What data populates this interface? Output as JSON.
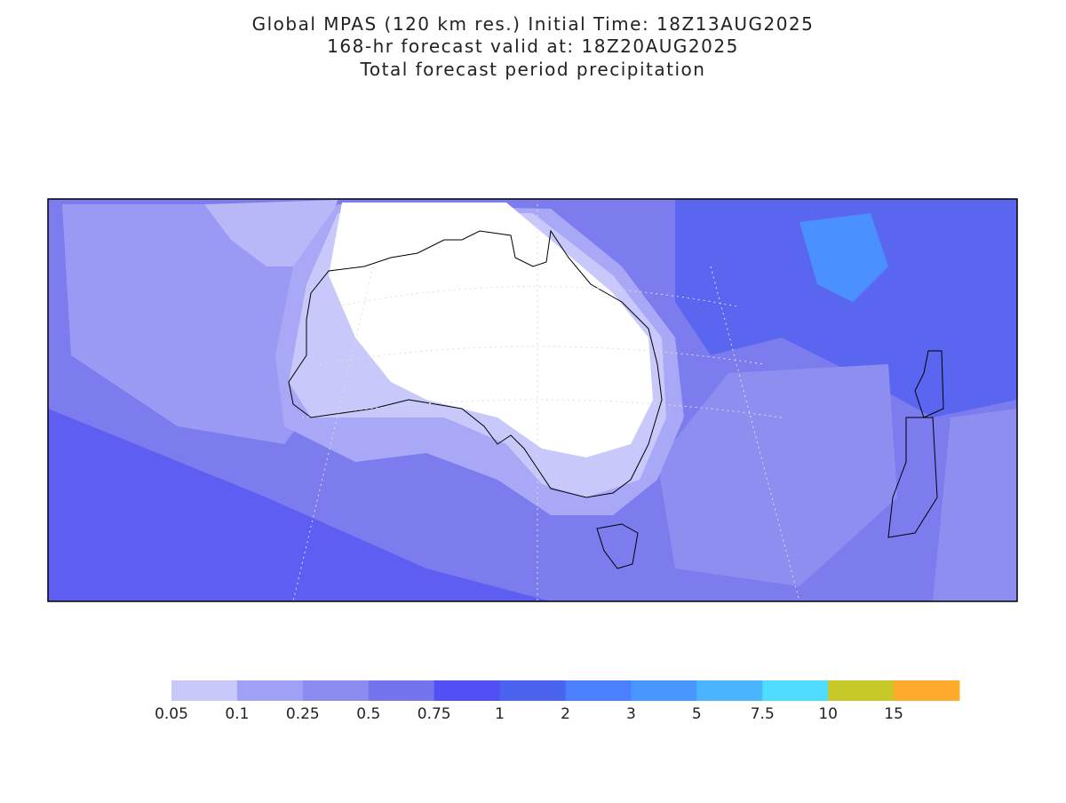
{
  "header": {
    "lines": [
      "Global MPAS (120 km res.) Initial Time: 18Z13AUG2025",
      "168-hr forecast valid at: 18Z20AUG2025",
      "Total forecast period precipitation"
    ]
  },
  "legend": {
    "levels": [
      0.05,
      0.1,
      0.25,
      0.5,
      0.75,
      1,
      2,
      3,
      5,
      7.5,
      10,
      15
    ],
    "colors": [
      "#c8c8fa",
      "#a0a0f5",
      "#8c8cf0",
      "#7474ec",
      "#5050f5",
      "#4a64f0",
      "#4a80ff",
      "#4a96ff",
      "#4ab4ff",
      "#50dcff",
      "#c8c828",
      "#ffaa28"
    ]
  }
}
